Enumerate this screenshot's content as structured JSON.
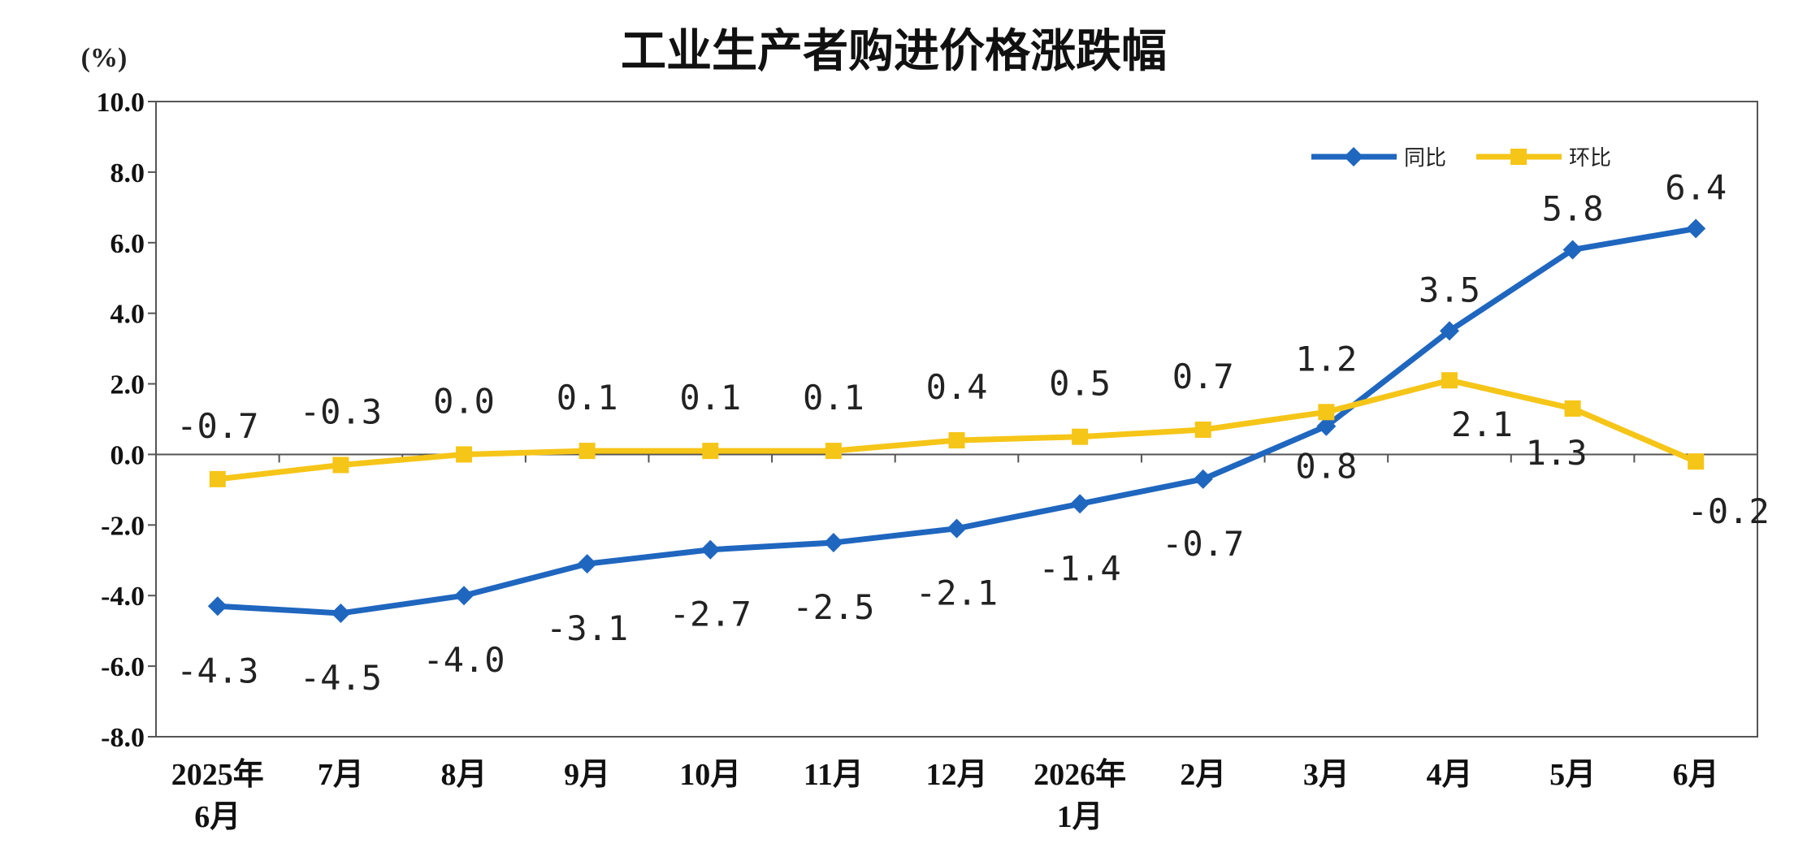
{
  "chart_data": {
    "type": "line",
    "title": "工业生产者购进价格涨跌幅",
    "ylabel": "(%)",
    "ylim": [
      -8.0,
      10.0
    ],
    "yticks": [
      "10.0",
      "8.0",
      "6.0",
      "4.0",
      "2.0",
      "0.0",
      "-2.0",
      "-4.0",
      "-6.0",
      "-8.0"
    ],
    "categories": [
      [
        "2025年",
        "6月"
      ],
      [
        "7月"
      ],
      [
        "8月"
      ],
      [
        "9月"
      ],
      [
        "10月"
      ],
      [
        "11月"
      ],
      [
        "12月"
      ],
      [
        "2026年",
        "1月"
      ],
      [
        "2月"
      ],
      [
        "3月"
      ],
      [
        "4月"
      ],
      [
        "5月"
      ],
      [
        "6月"
      ]
    ],
    "series": [
      {
        "name": "同比",
        "color": "#1f66bf",
        "marker": "diamond",
        "values": [
          -4.3,
          -4.5,
          -4.0,
          -3.1,
          -2.7,
          -2.5,
          -2.1,
          -1.4,
          -0.7,
          0.8,
          3.5,
          5.8,
          6.4
        ],
        "labels": [
          "-4.3",
          "-4.5",
          "-4.0",
          "-3.1",
          "-2.7",
          "-2.5",
          "-2.1",
          "-1.4",
          "-0.7",
          "0.8",
          "3.5",
          "5.8",
          "6.4"
        ]
      },
      {
        "name": "环比",
        "color": "#f5c518",
        "marker": "square",
        "values": [
          -0.7,
          -0.3,
          0.0,
          0.1,
          0.1,
          0.1,
          0.4,
          0.5,
          0.7,
          1.2,
          2.1,
          1.3,
          -0.2
        ],
        "labels": [
          "-0.7",
          "-0.3",
          "0.0",
          "0.1",
          "0.1",
          "0.1",
          "0.4",
          "0.5",
          "0.7",
          "1.2",
          "2.1",
          "1.3",
          "-0.2"
        ]
      }
    ],
    "legend": "top-right",
    "grid": false
  }
}
